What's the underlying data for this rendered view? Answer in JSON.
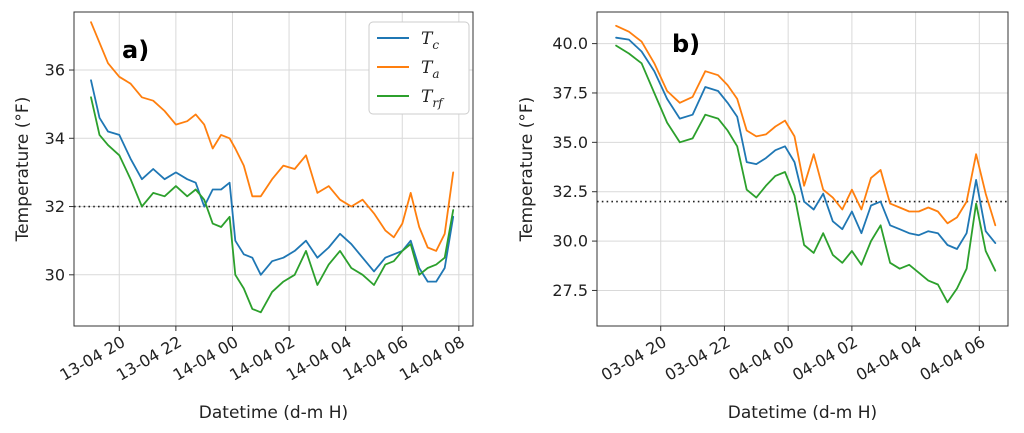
{
  "chart_data": [
    {
      "type": "line",
      "panel_label": "a)",
      "xlabel": "Datetime (d-m H)",
      "ylabel": "Temperature (°F)",
      "x_ticks": [
        {
          "value": 20,
          "label": "13-04 20"
        },
        {
          "value": 22,
          "label": "13-04 22"
        },
        {
          "value": 24,
          "label": "14-04 00"
        },
        {
          "value": 26,
          "label": "14-04 02"
        },
        {
          "value": 28,
          "label": "14-04 04"
        },
        {
          "value": 30,
          "label": "14-04 06"
        },
        {
          "value": 32,
          "label": "14-04 08"
        }
      ],
      "y_ticks": [
        {
          "value": 30,
          "label": "30"
        },
        {
          "value": 32,
          "label": "32"
        },
        {
          "value": 34,
          "label": "34"
        },
        {
          "value": 36,
          "label": "36"
        }
      ],
      "xlim": [
        18.4,
        32.5
      ],
      "ylim": [
        28.5,
        37.7
      ],
      "grid": true,
      "reference_line": 32,
      "legend_position": "top-right",
      "legend": [
        {
          "base": "T",
          "sub": "c",
          "color": "#1f77b4"
        },
        {
          "base": "T",
          "sub": "a",
          "color": "#ff7f0e"
        },
        {
          "base": "T",
          "sub": "rf",
          "color": "#2ca02c"
        }
      ],
      "series": [
        {
          "name": "T_c",
          "color": "#1f77b4",
          "x": [
            19.0,
            19.3,
            19.6,
            20.0,
            20.4,
            20.8,
            21.2,
            21.6,
            22.0,
            22.4,
            22.7,
            23.0,
            23.3,
            23.6,
            23.9,
            24.1,
            24.4,
            24.7,
            25.0,
            25.4,
            25.8,
            26.2,
            26.6,
            27.0,
            27.4,
            27.8,
            28.2,
            28.6,
            29.0,
            29.4,
            29.7,
            30.0,
            30.3,
            30.6,
            30.9,
            31.2,
            31.5,
            31.8
          ],
          "y": [
            35.7,
            34.6,
            34.2,
            34.1,
            33.4,
            32.8,
            33.1,
            32.8,
            33.0,
            32.8,
            32.7,
            32.0,
            32.5,
            32.5,
            32.7,
            31.0,
            30.6,
            30.5,
            30.0,
            30.4,
            30.5,
            30.7,
            31.0,
            30.5,
            30.8,
            31.2,
            30.9,
            30.5,
            30.1,
            30.5,
            30.6,
            30.7,
            31.0,
            30.2,
            29.8,
            29.8,
            30.2,
            31.7
          ]
        },
        {
          "name": "T_a",
          "color": "#ff7f0e",
          "x": [
            19.0,
            19.3,
            19.6,
            20.0,
            20.4,
            20.8,
            21.2,
            21.6,
            22.0,
            22.4,
            22.7,
            23.0,
            23.3,
            23.6,
            23.9,
            24.1,
            24.4,
            24.7,
            25.0,
            25.4,
            25.8,
            26.2,
            26.6,
            27.0,
            27.4,
            27.8,
            28.2,
            28.6,
            29.0,
            29.4,
            29.7,
            30.0,
            30.3,
            30.6,
            30.9,
            31.2,
            31.5,
            31.8
          ],
          "y": [
            37.4,
            36.8,
            36.2,
            35.8,
            35.6,
            35.2,
            35.1,
            34.8,
            34.4,
            34.5,
            34.7,
            34.4,
            33.7,
            34.1,
            34.0,
            33.7,
            33.2,
            32.3,
            32.3,
            32.8,
            33.2,
            33.1,
            33.5,
            32.4,
            32.6,
            32.2,
            32.0,
            32.2,
            31.8,
            31.3,
            31.1,
            31.5,
            32.4,
            31.4,
            30.8,
            30.7,
            31.2,
            33.0
          ]
        },
        {
          "name": "T_rf",
          "color": "#2ca02c",
          "x": [
            19.0,
            19.3,
            19.6,
            20.0,
            20.4,
            20.8,
            21.2,
            21.6,
            22.0,
            22.4,
            22.7,
            23.0,
            23.3,
            23.6,
            23.9,
            24.1,
            24.4,
            24.7,
            25.0,
            25.4,
            25.8,
            26.2,
            26.6,
            27.0,
            27.4,
            27.8,
            28.2,
            28.6,
            29.0,
            29.4,
            29.7,
            30.0,
            30.3,
            30.6,
            30.9,
            31.2,
            31.5,
            31.8
          ],
          "y": [
            35.2,
            34.1,
            33.8,
            33.5,
            32.8,
            32.0,
            32.4,
            32.3,
            32.6,
            32.3,
            32.5,
            32.2,
            31.5,
            31.4,
            31.7,
            30.0,
            29.6,
            29.0,
            28.9,
            29.5,
            29.8,
            30.0,
            30.7,
            29.7,
            30.3,
            30.7,
            30.2,
            30.0,
            29.7,
            30.3,
            30.4,
            30.7,
            30.9,
            30.0,
            30.2,
            30.3,
            30.5,
            31.9
          ]
        }
      ]
    },
    {
      "type": "line",
      "panel_label": "b)",
      "xlabel": "Datetime (d-m H)",
      "ylabel": "Temperature (°F)",
      "x_ticks": [
        {
          "value": 20,
          "label": "03-04 20"
        },
        {
          "value": 22,
          "label": "03-04 22"
        },
        {
          "value": 24,
          "label": "04-04 00"
        },
        {
          "value": 26,
          "label": "04-04 02"
        },
        {
          "value": 28,
          "label": "04-04 04"
        },
        {
          "value": 30,
          "label": "04-04 06"
        }
      ],
      "y_ticks": [
        {
          "value": 27.5,
          "label": "27.5"
        },
        {
          "value": 30.0,
          "label": "30.0"
        },
        {
          "value": 32.5,
          "label": "32.5"
        },
        {
          "value": 35.0,
          "label": "35.0"
        },
        {
          "value": 37.5,
          "label": "37.5"
        },
        {
          "value": 40.0,
          "label": "40.0"
        }
      ],
      "xlim": [
        18.0,
        30.9
      ],
      "ylim": [
        25.7,
        41.6
      ],
      "grid": true,
      "reference_line": 32,
      "series": [
        {
          "name": "T_c",
          "color": "#1f77b4",
          "x": [
            18.6,
            19.0,
            19.4,
            19.8,
            20.2,
            20.6,
            21.0,
            21.4,
            21.8,
            22.1,
            22.4,
            22.7,
            23.0,
            23.3,
            23.6,
            23.9,
            24.2,
            24.5,
            24.8,
            25.1,
            25.4,
            25.7,
            26.0,
            26.3,
            26.6,
            26.9,
            27.2,
            27.5,
            27.8,
            28.1,
            28.4,
            28.7,
            29.0,
            29.3,
            29.6,
            29.9,
            30.2,
            30.5
          ],
          "y": [
            40.3,
            40.2,
            39.6,
            38.6,
            37.2,
            36.2,
            36.4,
            37.8,
            37.6,
            37.0,
            36.3,
            34.0,
            33.9,
            34.2,
            34.6,
            34.8,
            34.0,
            32.0,
            31.6,
            32.4,
            31.0,
            30.6,
            31.5,
            30.4,
            31.8,
            32.0,
            30.8,
            30.6,
            30.4,
            30.3,
            30.5,
            30.4,
            29.8,
            29.6,
            30.4,
            33.1,
            30.5,
            29.9
          ]
        },
        {
          "name": "T_a",
          "color": "#ff7f0e",
          "x": [
            18.6,
            19.0,
            19.4,
            19.8,
            20.2,
            20.6,
            21.0,
            21.4,
            21.8,
            22.1,
            22.4,
            22.7,
            23.0,
            23.3,
            23.6,
            23.9,
            24.2,
            24.5,
            24.8,
            25.1,
            25.4,
            25.7,
            26.0,
            26.3,
            26.6,
            26.9,
            27.2,
            27.5,
            27.8,
            28.1,
            28.4,
            28.7,
            29.0,
            29.3,
            29.6,
            29.9,
            30.2,
            30.5
          ],
          "y": [
            40.9,
            40.6,
            40.1,
            39.0,
            37.6,
            37.0,
            37.3,
            38.6,
            38.4,
            37.9,
            37.2,
            35.6,
            35.3,
            35.4,
            35.8,
            36.1,
            35.3,
            32.8,
            34.4,
            32.6,
            32.2,
            31.6,
            32.6,
            31.6,
            33.2,
            33.6,
            31.9,
            31.7,
            31.5,
            31.5,
            31.7,
            31.5,
            30.9,
            31.2,
            32.0,
            34.4,
            32.4,
            30.8
          ]
        },
        {
          "name": "T_rf",
          "color": "#2ca02c",
          "x": [
            18.6,
            19.0,
            19.4,
            19.8,
            20.2,
            20.6,
            21.0,
            21.4,
            21.8,
            22.1,
            22.4,
            22.7,
            23.0,
            23.3,
            23.6,
            23.9,
            24.2,
            24.5,
            24.8,
            25.1,
            25.4,
            25.7,
            26.0,
            26.3,
            26.6,
            26.9,
            27.2,
            27.5,
            27.8,
            28.1,
            28.4,
            28.7,
            29.0,
            29.3,
            29.6,
            29.9,
            30.2,
            30.5
          ],
          "y": [
            39.9,
            39.5,
            39.0,
            37.5,
            36.0,
            35.0,
            35.2,
            36.4,
            36.2,
            35.6,
            34.8,
            32.6,
            32.2,
            32.8,
            33.3,
            33.5,
            32.3,
            29.8,
            29.4,
            30.4,
            29.3,
            28.9,
            29.5,
            28.8,
            30.0,
            30.8,
            28.9,
            28.6,
            28.8,
            28.4,
            28.0,
            27.8,
            26.9,
            27.6,
            28.6,
            31.9,
            29.5,
            28.5
          ]
        }
      ]
    }
  ]
}
